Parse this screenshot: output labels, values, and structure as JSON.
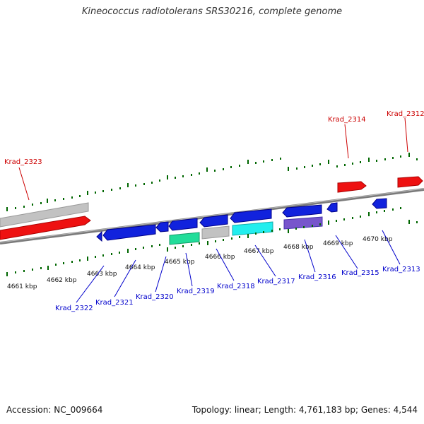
{
  "title": "Kineococcus radiotolerans SRS30216, complete genome",
  "footer": {
    "accession": "Accession: NC_009664",
    "topology": "Topology: linear; Length: 4,761,183 bp; Genes: 4,544"
  },
  "colors": {
    "forward_gene": "#ff0000",
    "reverse_gene": "#0000dd",
    "forward_label": "#cc0000",
    "reverse_label": "#0000cc",
    "tick": "#006600",
    "backbone": "#888888"
  },
  "ticks": [
    "4661 kbp",
    "4662 kbp",
    "4663 kbp",
    "4664 kbp",
    "4665 kbp",
    "4666 kbp",
    "4667 kbp",
    "4668 kbp",
    "4669 kbp",
    "4670 kbp"
  ],
  "genes_forward": [
    "Krad_2323",
    "Krad_2314",
    "Krad_2312"
  ],
  "genes_reverse": [
    "Krad_2322",
    "Krad_2321",
    "Krad_2320",
    "Krad_2319",
    "Krad_2318",
    "Krad_2317",
    "Krad_2316",
    "Krad_2315",
    "Krad_2313"
  ]
}
